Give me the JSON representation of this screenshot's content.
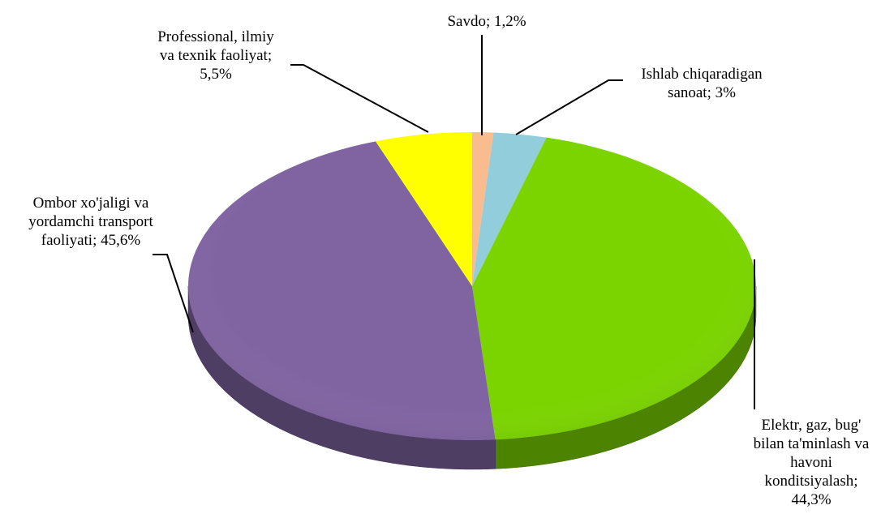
{
  "chart_data": {
    "type": "pie",
    "style": "3d",
    "title": "",
    "slices": [
      {
        "name": "Savdo",
        "value": 1.2,
        "color": "#f9bc8f",
        "label_lines": [
          "Savdo; 1,2%"
        ]
      },
      {
        "name": "Ishlab chiqaradigan sanoat",
        "value": 3,
        "color": "#92cddc",
        "label_lines": [
          "Ishlab chiqaradigan",
          "sanoat; 3%"
        ]
      },
      {
        "name": "Elektr, gaz, bug' bilan ta'minlash va havoni konditsiyalash",
        "value": 44.3,
        "color": "#7bd400",
        "label_lines": [
          "Elektr, gaz, bug'",
          "bilan ta'minlash va",
          "havoni",
          "konditsiyalash;",
          "44,3%"
        ]
      },
      {
        "name": "Ombor xo'jaligi va yordamchi transport faoliyati",
        "value": 45.6,
        "color": "#8064a2",
        "label_lines": [
          "Ombor xo'jaligi va",
          "yordamchi transport",
          "faoliyati; 45,6%"
        ]
      },
      {
        "name": "Professional, ilmiy va texnik faoliyat",
        "value": 5.5,
        "color": "#ffff00",
        "label_lines": [
          "Professional, ilmiy",
          "va texnik faoliyat;",
          "5,5%"
        ]
      }
    ]
  }
}
